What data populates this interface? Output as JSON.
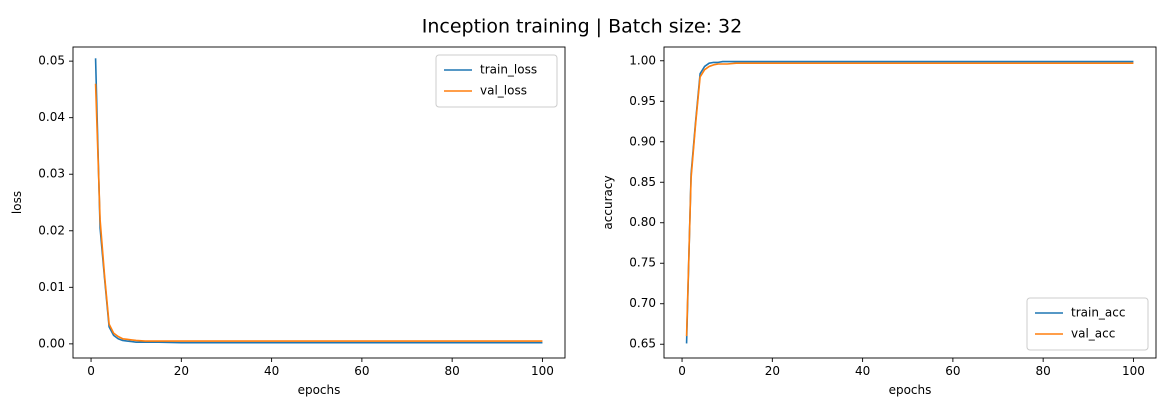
{
  "figure": {
    "suptitle": "Inception training | Batch size: 32"
  },
  "chart_data": [
    {
      "type": "line",
      "xlabel": "epochs",
      "ylabel": "loss",
      "xlim": [
        -4,
        105
      ],
      "ylim": [
        -0.0025,
        0.0525
      ],
      "xticks": [
        0,
        20,
        40,
        60,
        80,
        100
      ],
      "xtick_labels": [
        "0",
        "20",
        "40",
        "60",
        "80",
        "100"
      ],
      "yticks": [
        0.0,
        0.01,
        0.02,
        0.03,
        0.04,
        0.05
      ],
      "ytick_labels": [
        "0.00",
        "0.01",
        "0.02",
        "0.03",
        "0.04",
        "0.05"
      ],
      "legend": "top-right",
      "grid": false,
      "series": [
        {
          "name": "train_loss",
          "color": "#1f77b4",
          "x": [
            1,
            2,
            3,
            4,
            5,
            6,
            7,
            8,
            9,
            10,
            12,
            15,
            20,
            30,
            40,
            50,
            60,
            70,
            80,
            90,
            100
          ],
          "values": [
            0.0505,
            0.0205,
            0.0115,
            0.003,
            0.0015,
            0.0009,
            0.0006,
            0.0005,
            0.0004,
            0.0003,
            0.0003,
            0.0003,
            0.0002,
            0.0002,
            0.0002,
            0.0002,
            0.0002,
            0.0002,
            0.0002,
            0.0002,
            0.0002
          ]
        },
        {
          "name": "val_loss",
          "color": "#ff7f0e",
          "x": [
            1,
            2,
            3,
            4,
            5,
            6,
            7,
            8,
            9,
            10,
            12,
            15,
            20,
            30,
            40,
            50,
            60,
            70,
            80,
            90,
            100
          ],
          "values": [
            0.046,
            0.022,
            0.012,
            0.0035,
            0.0019,
            0.0013,
            0.0009,
            0.0008,
            0.0007,
            0.0006,
            0.0005,
            0.0005,
            0.0005,
            0.0005,
            0.0005,
            0.0005,
            0.0005,
            0.0005,
            0.0005,
            0.0005,
            0.0005
          ]
        }
      ]
    },
    {
      "type": "line",
      "xlabel": "epochs",
      "ylabel": "accuracy",
      "xlim": [
        -4,
        105
      ],
      "ylim": [
        0.633,
        1.017
      ],
      "xticks": [
        0,
        20,
        40,
        60,
        80,
        100
      ],
      "xtick_labels": [
        "0",
        "20",
        "40",
        "60",
        "80",
        "100"
      ],
      "yticks": [
        0.65,
        0.7,
        0.75,
        0.8,
        0.85,
        0.9,
        0.95,
        1.0
      ],
      "ytick_labels": [
        "0.65",
        "0.70",
        "0.75",
        "0.80",
        "0.85",
        "0.90",
        "0.95",
        "1.00"
      ],
      "legend": "bottom-right",
      "grid": false,
      "series": [
        {
          "name": "train_acc",
          "color": "#1f77b4",
          "x": [
            1,
            2,
            3,
            4,
            5,
            6,
            7,
            8,
            9,
            10,
            12,
            15,
            20,
            30,
            40,
            50,
            60,
            70,
            80,
            90,
            100
          ],
          "values": [
            0.651,
            0.86,
            0.925,
            0.984,
            0.993,
            0.997,
            0.998,
            0.998,
            0.999,
            0.999,
            0.999,
            0.999,
            0.999,
            0.999,
            0.999,
            0.999,
            0.999,
            0.999,
            0.999,
            0.999,
            0.999
          ]
        },
        {
          "name": "val_acc",
          "color": "#ff7f0e",
          "x": [
            1,
            2,
            3,
            4,
            5,
            6,
            7,
            8,
            9,
            10,
            12,
            15,
            20,
            30,
            40,
            50,
            60,
            70,
            80,
            90,
            100
          ],
          "values": [
            0.66,
            0.855,
            0.922,
            0.98,
            0.989,
            0.993,
            0.995,
            0.996,
            0.996,
            0.996,
            0.997,
            0.997,
            0.997,
            0.997,
            0.997,
            0.997,
            0.997,
            0.997,
            0.997,
            0.997,
            0.997
          ]
        }
      ]
    }
  ]
}
